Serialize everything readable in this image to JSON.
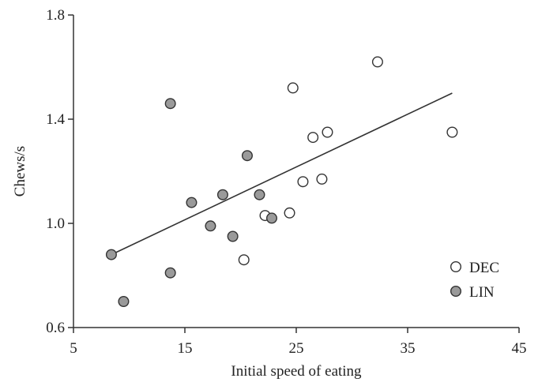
{
  "chart_data": {
    "type": "scatter",
    "title": "",
    "xlabel": "Initial speed of eating",
    "ylabel": "Chews/s",
    "xlim": [
      5,
      45
    ],
    "ylim": [
      0.6,
      1.8
    ],
    "xticks": [
      "5",
      "15",
      "25",
      "35",
      "45"
    ],
    "yticks": [
      "0.6",
      "1.0",
      "1.4",
      "1.8"
    ],
    "grid": false,
    "legend_position": "bottom-right",
    "series": [
      {
        "name": "DEC",
        "marker": "open-circle",
        "color": "#ffffff",
        "edge_color": "#333333",
        "points": [
          {
            "x": 32.3,
            "y": 1.62
          },
          {
            "x": 24.7,
            "y": 1.52
          },
          {
            "x": 39.0,
            "y": 1.35
          },
          {
            "x": 27.8,
            "y": 1.35
          },
          {
            "x": 26.5,
            "y": 1.33
          },
          {
            "x": 25.6,
            "y": 1.16
          },
          {
            "x": 27.3,
            "y": 1.17
          },
          {
            "x": 22.2,
            "y": 1.03
          },
          {
            "x": 24.4,
            "y": 1.04
          },
          {
            "x": 20.3,
            "y": 0.86
          }
        ]
      },
      {
        "name": "LIN",
        "marker": "filled-circle",
        "color": "#9a9a9a",
        "edge_color": "#333333",
        "points": [
          {
            "x": 13.7,
            "y": 1.46
          },
          {
            "x": 20.6,
            "y": 1.26
          },
          {
            "x": 18.4,
            "y": 1.11
          },
          {
            "x": 21.7,
            "y": 1.11
          },
          {
            "x": 15.6,
            "y": 1.08
          },
          {
            "x": 17.3,
            "y": 0.99
          },
          {
            "x": 22.8,
            "y": 1.02
          },
          {
            "x": 19.3,
            "y": 0.95
          },
          {
            "x": 8.4,
            "y": 0.88
          },
          {
            "x": 13.7,
            "y": 0.81
          },
          {
            "x": 9.5,
            "y": 0.7
          }
        ]
      }
    ],
    "trendline": {
      "x": [
        8.4,
        39.0
      ],
      "y": [
        0.88,
        1.5
      ],
      "color": "#333333"
    }
  }
}
